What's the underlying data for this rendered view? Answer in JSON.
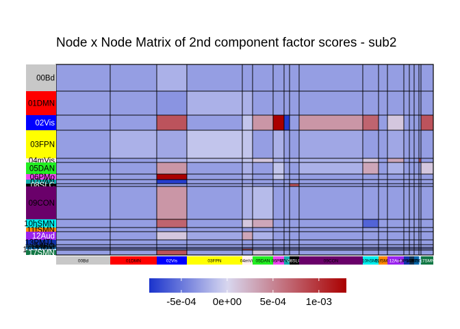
{
  "chart_data": {
    "type": "heatmap",
    "title": "Node x Node Matrix of 2nd component factor scores - sub2",
    "networks": [
      {
        "label": "00Bd",
        "color": "#c8c8c8",
        "text": "#000000"
      },
      {
        "label": "01DMN",
        "color": "#ff0000",
        "text": "#000000"
      },
      {
        "label": "02Vis",
        "color": "#0000ff",
        "text": "#ffffff"
      },
      {
        "label": "03FPN",
        "color": "#ffff00",
        "text": "#000000"
      },
      {
        "label": "04mVis",
        "color": "#fff0f0",
        "text": "#000000"
      },
      {
        "label": "05DAN",
        "color": "#22ee22",
        "text": "#000000"
      },
      {
        "label": "06PMo",
        "color": "#ee44ee",
        "text": "#000000"
      },
      {
        "label": "07VAN",
        "color": "#11aaaa",
        "text": "#000000"
      },
      {
        "label": "08SLC",
        "color": "#000000",
        "text": "#ffffff"
      },
      {
        "label": "09CON",
        "color": "#6a006a",
        "text": "#000000"
      },
      {
        "label": "10hSMN",
        "color": "#00eeee",
        "text": "#000000"
      },
      {
        "label": "11fSMN",
        "color": "#ff8800",
        "text": "#000000"
      },
      {
        "label": "12Aud",
        "color": "#9a22ee",
        "text": "#ffffff"
      },
      {
        "label": "13PMTL",
        "color": "#1133aa",
        "text": "#000000"
      },
      {
        "label": "14BG",
        "color": "#113355",
        "text": "#000000"
      },
      {
        "label": "15Thal",
        "color": "#0066aa",
        "text": "#000000"
      },
      {
        "label": "16SDMN",
        "color": "#aaddff",
        "text": "#000000"
      },
      {
        "label": "17SMN",
        "color": "#117744",
        "text": "#ffffff"
      }
    ],
    "x_tick_labels": [
      "00Bd",
      "01DMN",
      "02Vis",
      "03FPN",
      "04mVis",
      "05DAN",
      "06PMo",
      "07VAN",
      "08SLC",
      "09CON",
      "10hSMN",
      "11fSMN",
      "12Aud",
      "13PMTL",
      "14BG",
      "15Thal",
      "16SDMN",
      "17SMN"
    ],
    "y_tick_labels": [
      "00Bd",
      "01DMN",
      "02Vis",
      "03FPN",
      "04mVis",
      "05DAN",
      "06PMo",
      "07VAN",
      "08SLC",
      "09CON",
      "10hSMN",
      "11fSMN",
      "12Aud",
      "13PMTL",
      "14BG",
      "15Thal",
      "16SDMN",
      "17SMN"
    ],
    "values": [
      [
        -0.0003,
        -0.0003,
        -0.0002,
        -0.0003,
        -0.0003,
        -0.0003,
        -0.0003,
        -0.0003,
        -0.0003,
        -0.0003,
        -0.0003,
        -0.0003,
        -0.0003,
        -0.0003,
        -0.0003,
        -0.0003,
        -0.0003,
        -0.0003
      ],
      [
        -0.0003,
        -0.0003,
        -0.00035,
        -0.0002,
        -0.0002,
        -0.0003,
        -0.0003,
        -0.0003,
        -0.0003,
        -0.0003,
        -0.0003,
        -0.0003,
        -0.0003,
        -0.0003,
        -0.0003,
        -0.0003,
        -0.0003,
        -0.0003
      ],
      [
        -0.0003,
        -0.0003,
        0.0008,
        -0.0003,
        -0.0001,
        0.0004,
        0.0013,
        -0.0008,
        -0.0003,
        0.0004,
        0.0007,
        -0.0003,
        0.0001,
        -0.0003,
        -0.0003,
        -0.0003,
        -0.0003,
        0.0008
      ],
      [
        -0.0003,
        -0.0002,
        -0.00025,
        -0.0001,
        -0.0001,
        -0.0003,
        -0.0002,
        -0.0003,
        -0.0003,
        -0.00025,
        -0.0003,
        -0.0003,
        -0.00025,
        -0.0003,
        -0.0003,
        -0.0003,
        -0.0003,
        -0.0003
      ],
      [
        -0.0003,
        -0.0003,
        -0.0002,
        -0.00015,
        -0.0001,
        0.0001,
        -0.0002,
        -0.0003,
        -0.0002,
        -0.0002,
        0.0001,
        -0.0003,
        0.0003,
        -0.0003,
        -0.0003,
        -0.0003,
        0.0008,
        -0.0003
      ],
      [
        -0.0003,
        -0.0003,
        0.0004,
        -0.0003,
        -0.0002,
        -0.0003,
        -0.0001,
        -0.0003,
        -0.0003,
        -0.0002,
        0.0003,
        -0.0003,
        -0.0002,
        -0.0003,
        -0.0003,
        -0.0003,
        -0.0003,
        0.0001
      ],
      [
        -0.0003,
        -0.0003,
        0.0013,
        -0.0003,
        -0.0002,
        -0.0003,
        -0.0001,
        -0.0003,
        -0.0003,
        -0.0003,
        -0.0003,
        -0.0003,
        -0.0003,
        -0.0003,
        -0.0003,
        -0.0003,
        -0.0003,
        -0.0003
      ],
      [
        -0.0003,
        -0.0003,
        -0.0008,
        -0.0003,
        -0.0003,
        -0.0003,
        -0.0003,
        -0.0003,
        -0.0003,
        -0.0003,
        -0.0003,
        -0.0003,
        -0.0003,
        -0.0003,
        -0.0003,
        -0.0003,
        -0.0003,
        -0.0003
      ],
      [
        -0.0003,
        -0.0003,
        -0.0003,
        -0.0003,
        -0.0002,
        -0.0003,
        -0.0003,
        -0.0003,
        0.0008,
        -0.0003,
        -0.0003,
        -0.0003,
        -0.0003,
        -0.0003,
        -0.0003,
        -0.0003,
        -0.0003,
        -0.0003
      ],
      [
        -0.0003,
        -0.0003,
        0.0004,
        -0.0003,
        -0.0002,
        -0.00015,
        -0.0003,
        -0.0003,
        -0.0003,
        -0.0003,
        -0.0003,
        -0.0003,
        -0.0003,
        -0.0003,
        -0.0003,
        -0.0003,
        -0.0003,
        -0.0003
      ],
      [
        -0.0003,
        -0.0003,
        0.0007,
        -0.0003,
        0.0001,
        0.0003,
        -0.0003,
        -0.0003,
        -0.0003,
        -0.0003,
        -0.0006,
        -0.0003,
        -0.0003,
        -0.0003,
        -0.0003,
        -0.0003,
        -0.0003,
        -0.0003
      ],
      [
        -0.0003,
        -0.0003,
        -0.0003,
        -0.0003,
        -0.0003,
        -0.0003,
        -0.0003,
        -0.0003,
        -0.0003,
        -0.0003,
        -0.0003,
        -0.0003,
        -0.0003,
        -0.0003,
        -0.0003,
        -0.0003,
        -0.0003,
        -0.0003
      ],
      [
        -0.0003,
        -0.0003,
        0.0001,
        -0.00025,
        0.0003,
        -0.0002,
        -0.0003,
        -0.0003,
        -0.0003,
        -0.0003,
        -0.0003,
        -0.0003,
        -0.0003,
        -0.0003,
        -0.0003,
        -0.0003,
        -0.0003,
        -0.0003
      ],
      [
        -0.0003,
        -0.0003,
        -0.0003,
        -0.0003,
        -0.0003,
        -0.0003,
        -0.0003,
        -0.0003,
        -0.0003,
        -0.0003,
        -0.0003,
        -0.0003,
        -0.0003,
        -0.0003,
        -0.0003,
        -0.0003,
        -0.0003,
        -0.0003
      ],
      [
        -0.0003,
        -0.0003,
        -0.0003,
        -0.0003,
        -0.0003,
        -0.0003,
        -0.0003,
        -0.0003,
        -0.0003,
        -0.0003,
        -0.0003,
        -0.0003,
        -0.0003,
        -0.0003,
        -0.0003,
        -0.0003,
        -0.0003,
        -0.0003
      ],
      [
        -0.0004,
        -0.0004,
        -0.0005,
        -0.0004,
        -0.0004,
        -0.0004,
        -0.0004,
        -0.0004,
        -0.0004,
        -0.0004,
        -0.0004,
        -0.0004,
        -0.0004,
        -0.0004,
        -0.0004,
        -0.0004,
        -0.0004,
        -0.0004
      ],
      [
        -0.0003,
        -0.0003,
        -0.0003,
        -0.0003,
        0.0008,
        -0.0003,
        -0.0003,
        -0.0003,
        -0.0003,
        -0.0003,
        -0.0003,
        -0.0003,
        -0.0003,
        -0.0003,
        -0.0003,
        -0.0003,
        -0.0003,
        -0.0003
      ],
      [
        -0.0003,
        -0.0003,
        0.0008,
        -0.0003,
        -0.0003,
        0.0001,
        -0.0003,
        -0.0003,
        -0.0003,
        -0.0003,
        -0.0003,
        -0.0003,
        -0.0003,
        -0.0003,
        -0.0003,
        -0.0003,
        -0.0003,
        -0.0003
      ]
    ],
    "color_scale": {
      "min": -0.00085,
      "mid": 0,
      "max": 0.0013,
      "low_color": "#1a33cc",
      "mid_color": "#d8d8f0",
      "high_color": "#aa0000",
      "ticks": [
        -0.0005,
        0,
        0.0005,
        0.001
      ],
      "tick_labels": [
        "-5e-04",
        "0e+00",
        "5e-04",
        "1e-03"
      ]
    },
    "legend_position": "bottom"
  }
}
